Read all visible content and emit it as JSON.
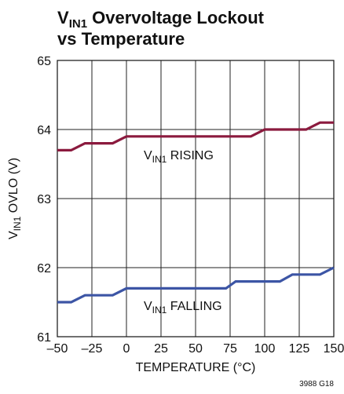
{
  "chart_data": {
    "type": "line",
    "title": [
      [
        "V",
        "IN1",
        " Overvoltage Lockout"
      ],
      "vs Temperature"
    ],
    "xlabel": "TEMPERATURE (°C)",
    "ylabel": [
      "V",
      "IN1",
      " OVLO (V)"
    ],
    "footnote": "3988 G18",
    "xlim": [
      -50,
      150
    ],
    "xticks": [
      {
        "value": -50,
        "label": "–50"
      },
      {
        "value": -25,
        "label": "–25"
      },
      0,
      25,
      50,
      75,
      100,
      125,
      150
    ],
    "ylim": [
      61,
      65
    ],
    "yticks": [
      61,
      62,
      63,
      64,
      65
    ],
    "grid": true,
    "series": [
      {
        "name": [
          "V",
          "IN1",
          " RISING"
        ],
        "color": "#8b1a3e",
        "x": [
          -50,
          -40,
          -30,
          -10,
          0,
          90,
          100,
          130,
          140,
          150
        ],
        "values": [
          63.7,
          63.7,
          63.8,
          63.8,
          63.9,
          63.9,
          64.0,
          64.0,
          64.1,
          64.1
        ]
      },
      {
        "name": [
          "V",
          "IN1",
          " FALLING"
        ],
        "color": "#3c55a5",
        "x": [
          -50,
          -40,
          -30,
          -10,
          0,
          72,
          79,
          111,
          120,
          140,
          150
        ],
        "values": [
          61.5,
          61.5,
          61.6,
          61.6,
          61.7,
          61.7,
          61.8,
          61.8,
          61.9,
          61.9,
          62.0
        ]
      }
    ]
  }
}
